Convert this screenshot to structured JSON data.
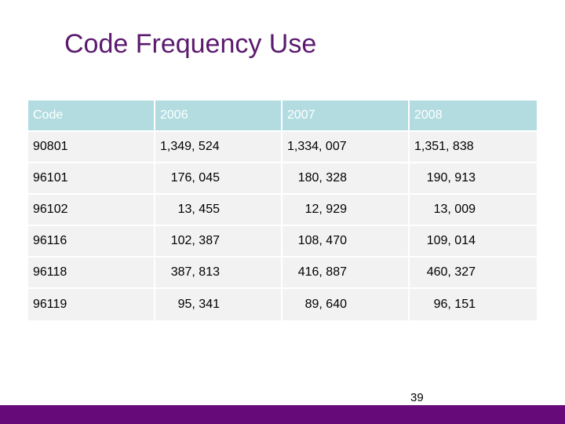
{
  "slide": {
    "title": "Code Frequency Use",
    "page_number": "39"
  },
  "table": {
    "headers": [
      "Code",
      "2006",
      "2007",
      "2008"
    ],
    "rows": [
      [
        "90801",
        "1,349, 524",
        "1,334, 007",
        "1,351, 838"
      ],
      [
        "96101",
        "176, 045",
        "180, 328",
        "190, 913"
      ],
      [
        "96102",
        "13, 455",
        "12, 929",
        "13, 009"
      ],
      [
        "96116",
        "102, 387",
        "108, 470",
        "109, 014"
      ],
      [
        "96118",
        "387, 813",
        "416, 887",
        "460, 327"
      ],
      [
        "96119",
        "95, 341",
        "89, 640",
        "96, 151"
      ]
    ]
  },
  "colors": {
    "title": "#5b1a6e",
    "header_fill": "#b2dce0",
    "row_fill": "#f2f2f2",
    "footer_bar": "#660a7a"
  }
}
